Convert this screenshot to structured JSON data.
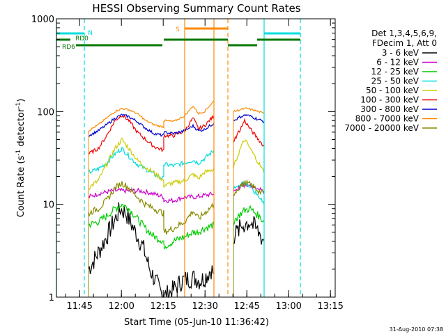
{
  "chart_data": {
    "type": "line",
    "title": "HESSI Observing Summary Count Rates",
    "xlabel": "Start Time (05-Jun-10 11:36:42)",
    "ylabel_main": "Count Rate (s",
    "ylabel_sup1": "-1",
    "ylabel_mid": " detector",
    "ylabel_sup2": "-1",
    "ylabel_end": ")",
    "yscale": "log",
    "ylim": [
      1,
      1000
    ],
    "xlim_minutes": [
      0,
      100
    ],
    "x_ticks": [
      {
        "label": "11:45",
        "t": 8.3
      },
      {
        "label": "12:00",
        "t": 23.3
      },
      {
        "label": "12:15",
        "t": 38.3
      },
      {
        "label": "12:30",
        "t": 53.3
      },
      {
        "label": "12:45",
        "t": 68.3
      },
      {
        "label": "13:00",
        "t": 83.3
      },
      {
        "label": "13:15",
        "t": 98.3
      }
    ],
    "y_ticks": [
      {
        "label": "1",
        "v": 1
      },
      {
        "label": "10",
        "v": 10
      },
      {
        "label": "100",
        "v": 100
      },
      {
        "label": "1000",
        "v": 1000
      }
    ],
    "legend": {
      "header": [
        "Det 1,3,4,5,6,9,",
        "FDecim 1, Att 0"
      ],
      "placement": "right"
    },
    "series": [
      {
        "name": "3 - 6 keV",
        "color": "#000000",
        "t": [
          11.5,
          15.0,
          18.0,
          20.0,
          23.0,
          25.0,
          27.0,
          31.0,
          33.5,
          35.5,
          37.0,
          38.5,
          38.5,
          42.0,
          45.0,
          48.0,
          50.0,
          51.5,
          53.0,
          55.5,
          56.5
        ],
        "v": [
          2.0,
          3.0,
          4.5,
          6.0,
          9.0,
          8.0,
          6.0,
          3.5,
          2.0,
          1.5,
          1.2,
          1.0,
          1.0,
          1.2,
          1.5,
          1.6,
          1.6,
          1.5,
          1.6,
          2.0,
          1.8
        ]
      },
      {
        "name": "6 - 12 keV",
        "color": "#cc00cc",
        "t": [
          11.5,
          15.0,
          20.0,
          25.0,
          30.0,
          35.0,
          38.5,
          38.5,
          42.0,
          46.0,
          50.0,
          53.0,
          56.5
        ],
        "v": [
          12.0,
          13.0,
          14.0,
          14.0,
          14.0,
          13.0,
          12.0,
          11.0,
          11.0,
          12.0,
          12.0,
          12.5,
          13.0
        ]
      },
      {
        "name": "12 - 25 keV",
        "color": "#00cc00",
        "t": [
          11.5,
          15.0,
          18.0,
          21.0,
          23.5,
          26.0,
          29.0,
          32.0,
          35.0,
          38.5,
          38.5,
          42.0,
          46.0,
          49.0,
          50.5,
          53.0,
          56.5
        ],
        "v": [
          6.0,
          6.5,
          7.5,
          9.0,
          10.0,
          9.0,
          7.0,
          5.5,
          4.5,
          4.0,
          3.5,
          4.0,
          4.5,
          5.0,
          5.0,
          5.5,
          6.0
        ]
      },
      {
        "name": "25 - 50 keV",
        "color": "#00dddd",
        "t": [
          11.5,
          15.0,
          18.0,
          21.0,
          23.5,
          26.0,
          29.0,
          32.0,
          35.0,
          38.5,
          38.5,
          42.0,
          46.0,
          49.0,
          51.0,
          53.0,
          56.5
        ],
        "v": [
          22.0,
          24.0,
          28.0,
          35.0,
          40.0,
          33.0,
          27.0,
          24.0,
          21.0,
          19.0,
          27.0,
          26.0,
          28.0,
          30.0,
          28.0,
          31.0,
          38.0
        ]
      },
      {
        "name": "50 - 100 keV",
        "color": "#cccc00",
        "t": [
          11.5,
          15.0,
          18.0,
          21.0,
          23.5,
          26.0,
          29.0,
          32.0,
          35.0,
          38.5,
          38.5,
          42.0,
          46.0,
          49.0,
          51.0,
          53.0,
          56.5
        ],
        "v": [
          15.0,
          18.0,
          27.0,
          40.0,
          50.0,
          40.0,
          30.0,
          25.0,
          22.0,
          18.0,
          16.0,
          17.0,
          18.0,
          21.0,
          19.0,
          22.0,
          24.0
        ]
      },
      {
        "name": "100 - 300 keV",
        "color": "#ee0000",
        "t": [
          11.5,
          15.0,
          18.0,
          21.0,
          23.5,
          26.0,
          29.0,
          32.0,
          35.0,
          38.5,
          38.5,
          42.0,
          46.0,
          49.0,
          51.0,
          53.0,
          56.5
        ],
        "v": [
          35.0,
          40.0,
          55.0,
          80.0,
          92.0,
          80.0,
          60.0,
          50.0,
          42.0,
          38.0,
          55.0,
          55.0,
          62.0,
          85.0,
          65.0,
          70.0,
          90.0
        ]
      },
      {
        "name": "300 - 800 keV",
        "color": "#0000cc",
        "t": [
          11.5,
          15.0,
          18.0,
          21.0,
          23.5,
          26.0,
          29.0,
          32.0,
          35.0,
          38.5,
          38.5,
          42.0,
          46.0,
          49.0,
          51.0,
          53.0,
          56.5
        ],
        "v": [
          55.0,
          62.0,
          72.0,
          85.0,
          92.0,
          88.0,
          78.0,
          66.0,
          58.0,
          55.0,
          60.0,
          58.0,
          62.0,
          70.0,
          62.0,
          64.0,
          75.0
        ]
      },
      {
        "name": "800 - 7000 keV",
        "color": "#ff8800",
        "t": [
          11.5,
          15.0,
          18.0,
          21.0,
          23.5,
          26.0,
          29.0,
          32.0,
          35.0,
          38.5,
          38.5,
          42.0,
          46.0,
          49.0,
          51.0,
          53.0,
          56.5
        ],
        "v": [
          62.0,
          72.0,
          85.0,
          100.0,
          108.0,
          105.0,
          95.0,
          80.0,
          72.0,
          68.0,
          80.0,
          78.0,
          90.0,
          115.0,
          95.0,
          100.0,
          130.0
        ]
      },
      {
        "name": "7000 - 20000 keV",
        "color": "#888800",
        "t": [
          11.5,
          15.0,
          18.0,
          21.0,
          23.5,
          26.0,
          29.0,
          32.0,
          35.0,
          38.5,
          38.5,
          42.0,
          46.0,
          49.0,
          51.0,
          53.0,
          56.5
        ],
        "v": [
          8.0,
          9.0,
          11.0,
          15.0,
          17.0,
          15.0,
          12.0,
          10.0,
          9.0,
          8.0,
          5.0,
          5.5,
          6.5,
          8.5,
          7.0,
          8.0,
          10.0
        ]
      }
    ],
    "series_segment2": [
      {
        "name": "3 - 6 keV",
        "color": "#000000",
        "t": [
          63.5,
          67.0,
          69.5,
          72.5,
          74.5
        ],
        "v": [
          4.5,
          6.0,
          6.5,
          5.0,
          4.0
        ]
      },
      {
        "name": "6 - 12 keV",
        "color": "#cc00cc",
        "t": [
          63.5,
          67.0,
          69.5,
          72.5,
          74.5
        ],
        "v": [
          14.0,
          16.0,
          16.0,
          15.0,
          13.0
        ]
      },
      {
        "name": "12 - 25 keV",
        "color": "#00cc00",
        "t": [
          63.5,
          67.0,
          69.5,
          72.5,
          74.5
        ],
        "v": [
          6.5,
          8.5,
          9.0,
          7.5,
          6.5
        ]
      },
      {
        "name": "25 - 50 keV",
        "color": "#00dddd",
        "t": [
          63.5,
          67.0,
          69.5,
          72.5,
          74.5
        ],
        "v": [
          15.0,
          17.0,
          16.0,
          12.0,
          10.0
        ]
      },
      {
        "name": "50 - 100 keV",
        "color": "#cccc00",
        "t": [
          63.5,
          66.0,
          67.5,
          69.5,
          72.5,
          74.5
        ],
        "v": [
          25.0,
          40.0,
          50.0,
          40.0,
          28.0,
          22.0
        ]
      },
      {
        "name": "100 - 300 keV",
        "color": "#ee0000",
        "t": [
          63.5,
          66.0,
          67.5,
          69.5,
          72.5,
          74.5
        ],
        "v": [
          48.0,
          65.0,
          80.0,
          65.0,
          50.0,
          42.0
        ]
      },
      {
        "name": "300 - 800 keV",
        "color": "#0000cc",
        "t": [
          63.5,
          66.0,
          68.0,
          70.0,
          72.5,
          74.5
        ],
        "v": [
          80.0,
          88.0,
          92.0,
          88.0,
          82.0,
          78.0
        ]
      },
      {
        "name": "800 - 7000 keV",
        "color": "#ff8800",
        "t": [
          63.5,
          66.0,
          68.0,
          70.0,
          72.5,
          74.5
        ],
        "v": [
          100.0,
          105.0,
          108.0,
          105.0,
          100.0,
          95.0
        ]
      },
      {
        "name": "7000 - 20000 keV",
        "color": "#888800",
        "t": [
          63.5,
          66.0,
          68.0,
          70.0,
          72.5,
          74.5
        ],
        "v": [
          13.0,
          16.0,
          17.0,
          16.0,
          14.0,
          13.0
        ]
      }
    ],
    "vertical_markers": [
      {
        "t": 0.0,
        "color": "#00dddd",
        "style": "solid"
      },
      {
        "t": 10.0,
        "color": "#00dddd",
        "style": "dashed"
      },
      {
        "t": 46.0,
        "color": "#ff8800",
        "style": "solid"
      },
      {
        "t": 56.5,
        "color": "#ff8800",
        "style": "solid"
      },
      {
        "t": 61.5,
        "color": "#ff8800",
        "style": "dashed"
      },
      {
        "t": 74.5,
        "color": "#00dddd",
        "style": "solid"
      },
      {
        "t": 87.5,
        "color": "#00dddd",
        "style": "dashed"
      }
    ],
    "flag_bars": [
      {
        "label": "N",
        "color": "#00dddd",
        "segments": [
          [
            0,
            10.0
          ],
          [
            74.5,
            87.5
          ]
        ],
        "level": "top"
      },
      {
        "label": "S",
        "color": "#ff8800",
        "segments": [
          [
            46.0,
            61.5
          ]
        ],
        "level": "top-high"
      },
      {
        "label": "RD0",
        "color": "#007700",
        "segments": [
          [
            0,
            5.0
          ],
          [
            38.5,
            61.5
          ],
          [
            72.0,
            87.5
          ]
        ],
        "level": "mid"
      },
      {
        "label": "RD6",
        "color": "#007700",
        "segments": [
          [
            7.0,
            38.0
          ],
          [
            61.5,
            72.0
          ]
        ],
        "level": "low"
      }
    ]
  },
  "footer_date": "31-Aug-2010 07:38"
}
